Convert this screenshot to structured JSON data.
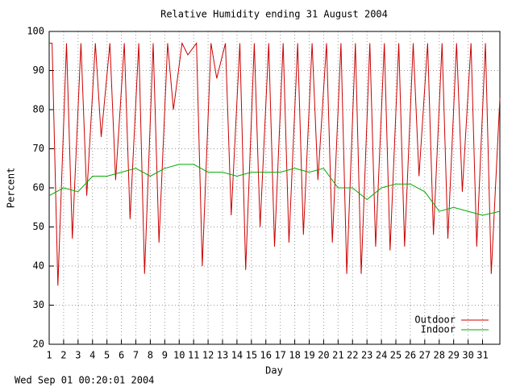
{
  "chart_data": {
    "type": "line",
    "title": "Relative Humidity ending 31 August 2004",
    "x_label": "Day",
    "y_label": "Percent",
    "footer": "Wed Sep 01 00:20:01 2004",
    "xlim": [
      1,
      32.2
    ],
    "ylim": [
      20,
      100
    ],
    "xticks": [
      1,
      2,
      3,
      4,
      5,
      6,
      7,
      8,
      9,
      10,
      11,
      12,
      13,
      14,
      15,
      16,
      17,
      18,
      19,
      20,
      21,
      22,
      23,
      24,
      25,
      26,
      27,
      28,
      29,
      30,
      31
    ],
    "yticks": [
      20,
      30,
      40,
      50,
      60,
      70,
      80,
      90,
      100
    ],
    "grid": true,
    "legend": "lower right",
    "series": [
      {
        "name": "Outdoor",
        "color": "#cc0000",
        "x": [
          1,
          1.2,
          1.6,
          2.2,
          2.6,
          3.2,
          3.6,
          4.2,
          4.6,
          5.2,
          5.6,
          6.2,
          6.6,
          7.2,
          7.6,
          8.2,
          8.6,
          9.2,
          9.6,
          10.2,
          10.6,
          11.2,
          11.6,
          12.2,
          12.6,
          13.2,
          13.6,
          14.2,
          14.6,
          15.2,
          15.6,
          16.2,
          16.6,
          17.2,
          17.6,
          18.2,
          18.6,
          19.2,
          19.6,
          20.2,
          20.6,
          21.2,
          21.6,
          22.2,
          22.6,
          23.2,
          23.6,
          24.2,
          24.6,
          25.2,
          25.6,
          26.2,
          26.6,
          27.2,
          27.6,
          28.2,
          28.6,
          29.2,
          29.6,
          30.2,
          30.6,
          31.2,
          31.6,
          32.2
        ],
        "values": [
          97,
          97,
          35,
          97,
          47,
          97,
          58,
          97,
          73,
          97,
          62,
          97,
          52,
          97,
          38,
          97,
          46,
          97,
          80,
          97,
          94,
          97,
          40,
          97,
          88,
          97,
          53,
          97,
          39,
          97,
          50,
          97,
          45,
          97,
          46,
          97,
          48,
          97,
          62,
          97,
          46,
          97,
          38,
          97,
          38,
          97,
          45,
          97,
          44,
          97,
          45,
          97,
          63,
          97,
          48,
          97,
          47,
          97,
          59,
          97,
          45,
          97,
          38,
          83
        ]
      },
      {
        "name": "Indoor",
        "color": "#00aa00",
        "x": [
          1,
          2,
          3,
          4,
          5,
          6,
          7,
          8,
          9,
          10,
          11,
          12,
          13,
          14,
          15,
          16,
          17,
          18,
          19,
          20,
          21,
          22,
          23,
          24,
          25,
          26,
          27,
          28,
          29,
          30,
          31,
          32.2
        ],
        "values": [
          58,
          60,
          59,
          63,
          63,
          64,
          65,
          63,
          65,
          66,
          66,
          64,
          64,
          63,
          64,
          64,
          64,
          65,
          64,
          65,
          60,
          60,
          57,
          60,
          61,
          61,
          59,
          54,
          55,
          54,
          53,
          54
        ]
      }
    ]
  }
}
